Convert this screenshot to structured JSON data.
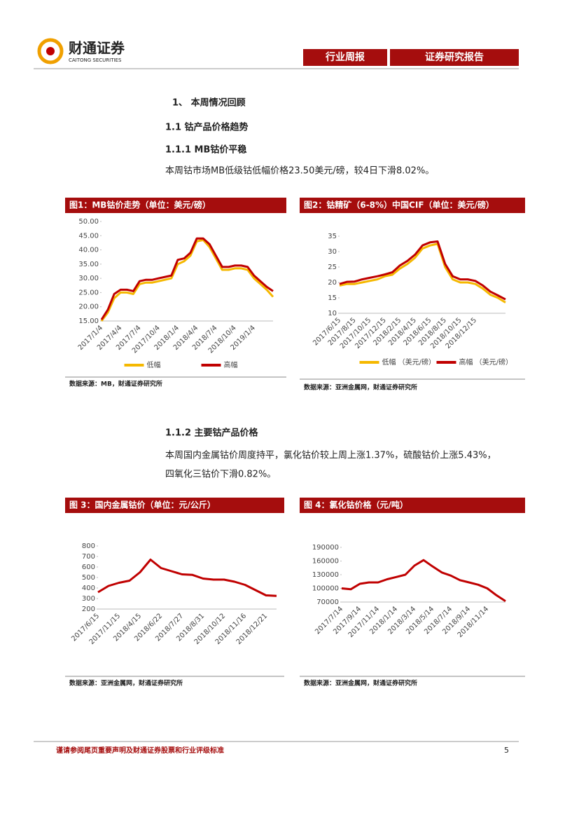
{
  "header": {
    "brand": "财通证券",
    "brand_en": "CAITONG SECURITIES",
    "tag1": "行业周报",
    "tag2": "证券研究报告"
  },
  "sections": [
    {
      "heading": "1、 本周情况回顾"
    },
    {
      "heading": "1.1 钴产品价格趋势"
    },
    {
      "heading": "1.1.1 MB钴价平稳",
      "paragraphs": [
        "本周钴市场MB低级钴低幅价格23.50美元/磅，较4日下滑8.02%。"
      ]
    },
    {
      "heading": "1.1.2 主要钴产品价格",
      "paragraphs": [
        "本周国内金属钴价周度持平，氯化钴价较上周上涨1.37%，硫酸钴价上涨5.43%，",
        "四氧化三钴价下滑0.82%。"
      ]
    }
  ],
  "chart_data": [
    {
      "type": "line",
      "title": "图1：MB钴价走势（单位：美元/磅）",
      "source": "数据来源：MB，财通证券研究所",
      "categories": [
        "2017/1/4",
        null,
        null,
        "2017/4/4",
        null,
        null,
        "2017/7/4",
        null,
        null,
        "2017/10/4",
        null,
        null,
        "2018/1/4",
        null,
        null,
        "2018/4/4",
        null,
        null,
        "2018/7/4",
        null,
        null,
        "2018/10/4",
        null,
        null,
        "2019/1/4",
        null,
        null,
        null
      ],
      "series": [
        {
          "name": "低幅",
          "color": "#f5b800",
          "values": [
            15,
            18,
            23,
            25,
            25,
            24.5,
            28,
            28.5,
            28.5,
            29,
            29.5,
            30,
            35,
            36,
            38,
            43,
            43.5,
            41,
            37,
            33,
            33,
            33.5,
            33.5,
            33,
            30,
            28,
            26,
            23.5
          ]
        },
        {
          "name": "高幅",
          "color": "#c00000",
          "values": [
            15.5,
            19,
            24.5,
            26,
            26,
            25.5,
            29,
            29.5,
            29.5,
            30,
            30.5,
            31,
            36.5,
            37,
            39,
            44,
            44,
            42,
            38,
            34,
            34,
            34.5,
            34.5,
            34,
            31,
            29,
            27,
            25.5
          ]
        }
      ],
      "ylim": [
        15,
        50
      ],
      "yticks": [
        {
          "value": 15,
          "label": "15.00"
        },
        {
          "value": 20,
          "label": "20.00"
        },
        {
          "value": 25,
          "label": "25.00"
        },
        {
          "value": 30,
          "label": "30.00"
        },
        {
          "value": 35,
          "label": "35.00"
        },
        {
          "value": 40,
          "label": "40.00"
        },
        {
          "value": 45,
          "label": "45.00"
        },
        {
          "value": 50,
          "label": "50.00"
        }
      ],
      "legend": "bottom"
    },
    {
      "type": "line",
      "title": "图2：钴精矿（6-8%）中国CIF（单位：美元/磅）",
      "source": "数据来源：亚洲金属网，财通证券研究所",
      "categories": [
        "2017/6/15",
        null,
        "2017/8/15",
        null,
        "2017/10/15",
        null,
        "2017/12/15",
        null,
        "2018/2/15",
        null,
        "2018/4/15",
        null,
        "2018/6/15",
        null,
        "2018/8/15",
        null,
        "2018/10/15",
        null,
        "2018/12/15",
        null,
        null,
        null,
        null
      ],
      "series": [
        {
          "name": "低幅 （美元/磅）",
          "color": "#f5b800",
          "values": [
            19,
            19.5,
            19.5,
            20,
            20.5,
            21,
            22,
            22.5,
            24.5,
            26,
            28,
            31,
            32,
            32.5,
            25,
            21,
            20,
            20,
            19.5,
            18,
            16,
            15,
            13.5
          ]
        },
        {
          "name": "高幅 （美元/磅）",
          "color": "#c00000",
          "values": [
            19.5,
            20.2,
            20.3,
            21,
            21.5,
            22,
            22.6,
            23.3,
            25.5,
            27,
            29,
            32,
            33,
            33.3,
            26,
            22,
            21,
            21,
            20.5,
            19,
            17,
            15.8,
            14.5
          ]
        }
      ],
      "ylim": [
        10,
        35
      ],
      "yticks": [
        10,
        15,
        20,
        25,
        30,
        35
      ],
      "legend": "bottom"
    },
    {
      "type": "line",
      "title": "图 3：国内金属钴价（单位：元/公斤）",
      "source": "数据来源：亚洲金属网，财通证券研究所",
      "categories": [
        "2017/6/15",
        null,
        "2017/11/15",
        null,
        "2018/4/15",
        null,
        "2018/6/22",
        null,
        "2018/7/27",
        null,
        "2018/8/31",
        null,
        "2018/10/12",
        null,
        "2018/11/16",
        null,
        "2018/12/21",
        null
      ],
      "series": [
        {
          "color": "#c00000",
          "values": [
            360,
            420,
            450,
            470,
            550,
            670,
            590,
            560,
            530,
            525,
            490,
            480,
            480,
            460,
            430,
            380,
            330,
            325
          ]
        }
      ],
      "ylim": [
        200,
        800
      ],
      "yticks": [
        200,
        300,
        400,
        500,
        600,
        700,
        800
      ]
    },
    {
      "type": "line",
      "title": "图 4：氯化钴价格（元/吨）",
      "source": "数据来源：亚洲金属网，财通证券研究所",
      "categories": [
        "2017/7/14",
        null,
        "2017/9/14",
        null,
        "2017/11/14",
        null,
        "2018/1/14",
        null,
        "2018/3/14",
        null,
        "2018/5/14",
        null,
        "2018/7/14",
        null,
        "2018/9/14",
        null,
        "2018/11/14",
        null,
        null
      ],
      "series": [
        {
          "color": "#c00000",
          "values": [
            100000,
            98000,
            110000,
            113000,
            113000,
            120000,
            125000,
            130000,
            150000,
            162000,
            148000,
            135000,
            128000,
            118000,
            113000,
            108000,
            100000,
            85000,
            72000
          ]
        }
      ],
      "ylim": [
        70000,
        190000
      ],
      "yticks": [
        70000,
        100000,
        130000,
        160000,
        190000
      ]
    }
  ],
  "footer": {
    "note": "谨请参阅尾页重要声明及财通证券股票和行业评级标准",
    "page": "5"
  }
}
